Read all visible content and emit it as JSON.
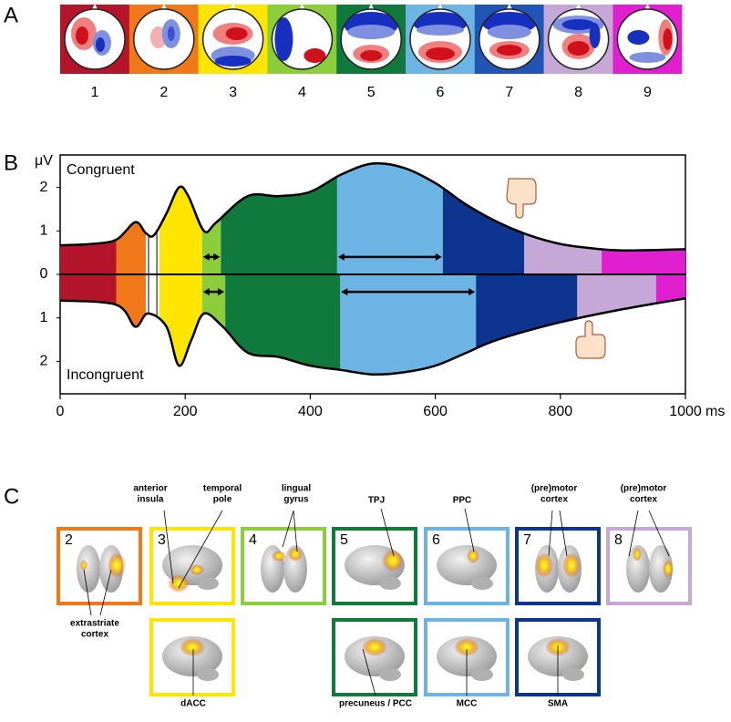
{
  "panel_a": {
    "label": "A",
    "maps": [
      {
        "number": "1",
        "color": "#b5152b"
      },
      {
        "number": "2",
        "color": "#f07818"
      },
      {
        "number": "3",
        "color": "#ffe500"
      },
      {
        "number": "4",
        "color": "#8ccd3c"
      },
      {
        "number": "5",
        "color": "#0f7a3c"
      },
      {
        "number": "6",
        "color": "#6cb4e4"
      },
      {
        "number": "7",
        "color": "#2155b5"
      },
      {
        "number": "8",
        "color": "#c6a8d8"
      },
      {
        "number": "9",
        "color": "#e020d0"
      }
    ]
  },
  "panel_b": {
    "label": "B",
    "unit": "μV",
    "top_label": "Congruent",
    "bottom_label": "Incongruent",
    "x_unit": "ms",
    "xlim": [
      0,
      1000
    ],
    "xticks": [
      0,
      200,
      400,
      600,
      800,
      1000
    ],
    "ylim_top": [
      0,
      2.7
    ],
    "yticks_top": [
      0,
      1,
      2
    ],
    "yticks_bottom": [
      1,
      2
    ],
    "segments_top": [
      {
        "start": 0,
        "end": 90,
        "color": "#b5152b"
      },
      {
        "start": 90,
        "end": 137,
        "color": "#f07818"
      },
      {
        "start": 137,
        "end": 159,
        "color": "#ffffff"
      },
      {
        "start": 159,
        "end": 227,
        "color": "#ffe500"
      },
      {
        "start": 227,
        "end": 257,
        "color": "#8ccd3c",
        "arrow": true
      },
      {
        "start": 257,
        "end": 443,
        "color": "#0f7a3c"
      },
      {
        "start": 443,
        "end": 612,
        "color": "#6cb4e4",
        "arrow": true
      },
      {
        "start": 612,
        "end": 742,
        "color": "#0d3590"
      },
      {
        "start": 742,
        "end": 866,
        "color": "#c6a8d8"
      },
      {
        "start": 866,
        "end": 1000,
        "color": "#e020d0"
      }
    ],
    "segments_bottom": [
      {
        "start": 0,
        "end": 90,
        "color": "#b5152b"
      },
      {
        "start": 90,
        "end": 137,
        "color": "#f07818"
      },
      {
        "start": 137,
        "end": 159,
        "color": "#ffffff"
      },
      {
        "start": 159,
        "end": 227,
        "color": "#ffe500"
      },
      {
        "start": 227,
        "end": 264,
        "color": "#8ccd3c",
        "arrow": true
      },
      {
        "start": 264,
        "end": 448,
        "color": "#0f7a3c"
      },
      {
        "start": 448,
        "end": 665,
        "color": "#6cb4e4",
        "arrow": true
      },
      {
        "start": 665,
        "end": 827,
        "color": "#0d3590"
      },
      {
        "start": 827,
        "end": 953,
        "color": "#c6a8d8"
      },
      {
        "start": 953,
        "end": 1000,
        "color": "#e020d0"
      }
    ],
    "envelope_top": {
      "ms": [
        0,
        50,
        90,
        120,
        137,
        150,
        170,
        190,
        205,
        230,
        250,
        300,
        350,
        400,
        450,
        500,
        550,
        600,
        650,
        700,
        750,
        800,
        850,
        900,
        1000
      ],
      "uv": [
        0.67,
        0.7,
        0.8,
        1.2,
        0.95,
        0.9,
        1.4,
        2.0,
        1.8,
        1.0,
        1.2,
        1.8,
        1.8,
        1.9,
        2.3,
        2.55,
        2.45,
        2.1,
        1.6,
        1.2,
        0.9,
        0.7,
        0.6,
        0.55,
        0.58
      ]
    },
    "envelope_bottom": {
      "ms": [
        0,
        90,
        120,
        140,
        170,
        190,
        210,
        230,
        260,
        300,
        350,
        400,
        450,
        500,
        550,
        600,
        650,
        700,
        800,
        900,
        1000
      ],
      "uv": [
        0.6,
        0.7,
        1.2,
        0.9,
        1.2,
        2.1,
        1.5,
        0.9,
        1.2,
        1.8,
        1.9,
        2.1,
        2.2,
        2.3,
        2.25,
        2.1,
        1.8,
        1.5,
        1.1,
        0.8,
        0.55
      ]
    }
  },
  "panel_c": {
    "label": "C",
    "boxes": [
      {
        "number": "2",
        "color": "#f07818"
      },
      {
        "number": "3",
        "color": "#ffe500"
      },
      {
        "number": "4",
        "color": "#8ccd3c"
      },
      {
        "number": "5",
        "color": "#0f7a3c"
      },
      {
        "number": "6",
        "color": "#6cb4e4"
      },
      {
        "number": "7",
        "color": "#0d3590"
      },
      {
        "number": "8",
        "color": "#c6a8d8"
      }
    ],
    "bottom_boxes": [
      {
        "color": "#ffe500"
      },
      {
        "color": "#0f7a3c"
      },
      {
        "color": "#6cb4e4"
      },
      {
        "color": "#0d3590"
      }
    ],
    "annotations": [
      {
        "lines": [
          "anterior",
          "insula"
        ]
      },
      {
        "lines": [
          "temporal",
          "pole"
        ]
      },
      {
        "lines": [
          "lingual",
          "gyrus"
        ]
      },
      {
        "lines": [
          "TPJ"
        ]
      },
      {
        "lines": [
          "PPC"
        ]
      },
      {
        "lines": [
          "(pre)motor",
          "cortex"
        ]
      },
      {
        "lines": [
          "(pre)motor",
          "cortex"
        ]
      },
      {
        "lines": [
          "extrastriate",
          "cortex"
        ]
      },
      {
        "lines": [
          "dACC"
        ]
      },
      {
        "lines": [
          "precuneus / PCC"
        ]
      },
      {
        "lines": [
          "MCC"
        ]
      },
      {
        "lines": [
          "SMA"
        ]
      }
    ]
  }
}
